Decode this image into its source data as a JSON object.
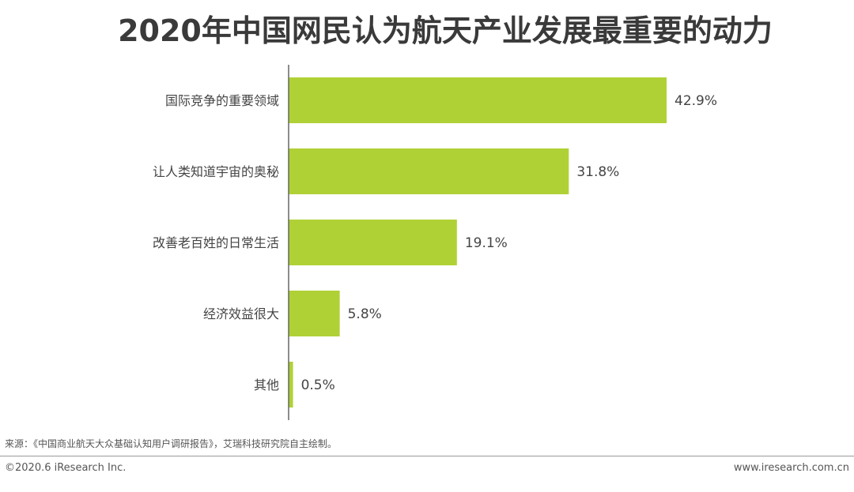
{
  "title": "2020年中国网民认为航天产业发展最重要的动力",
  "colors": {
    "bar": "#b0d136",
    "axis": "#666666",
    "text": "#444444"
  },
  "chart_data": {
    "type": "bar",
    "orientation": "horizontal",
    "title": "2020年中国网民认为航天产业发展最重要的动力",
    "categories": [
      "国际竞争的重要领域",
      "让人类知道宇宙的奥秘",
      "改善老百姓的日常生活",
      "经济效益很大",
      "其他"
    ],
    "values": [
      42.9,
      31.8,
      19.1,
      5.8,
      0.5
    ],
    "value_labels": [
      "42.9%",
      "31.8%",
      "19.1%",
      "5.8%",
      "0.5%"
    ],
    "unit": "%",
    "xlim": [
      0,
      42.9
    ],
    "grid": false,
    "legend": "none"
  },
  "footer": {
    "source": "来源：《中国商业航天大众基础认知用户调研报告》，艾瑞科技研究院自主绘制。",
    "copyright": "©2020.6 iResearch Inc.",
    "website": "www.iresearch.com.cn"
  }
}
